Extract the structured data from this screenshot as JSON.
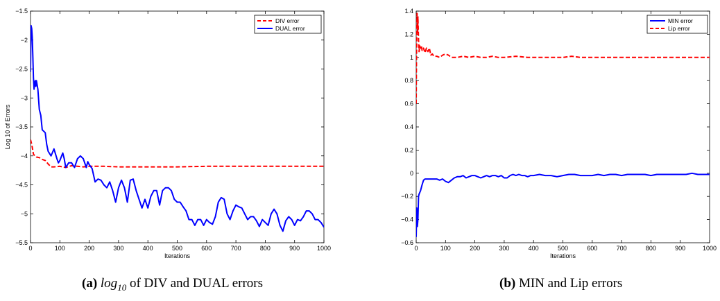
{
  "chart_data": [
    {
      "type": "line",
      "panel": "a",
      "caption": {
        "letter": "(a)",
        "math_base": "log",
        "math_sub": "10",
        "text": "of DIV and DUAL errors"
      },
      "xlabel": "Iterations",
      "ylabel": "Log 10 of Errors",
      "xlim": [
        0,
        1000
      ],
      "ylim": [
        -5.5,
        -1.5
      ],
      "xticks": [
        0,
        100,
        200,
        300,
        400,
        500,
        600,
        700,
        800,
        900,
        1000
      ],
      "yticks": [
        -5.5,
        -5,
        -4.5,
        -4,
        -3.5,
        -3,
        -2.5,
        -2,
        -1.5
      ],
      "ytick_labels": [
        "−5.5",
        "−5",
        "−4.5",
        "−4",
        "−3.5",
        "−3",
        "−2.5",
        "−2",
        "−1.5"
      ],
      "grid": false,
      "legend": "top-right",
      "series": [
        {
          "name": "DIV error",
          "color": "#ff0000",
          "dash": "dashed",
          "x": [
            0,
            3,
            6,
            10,
            15,
            20,
            30,
            40,
            50,
            60,
            70,
            80,
            100,
            120,
            140,
            160,
            180,
            200,
            250,
            300,
            350,
            400,
            450,
            500,
            600,
            700,
            800,
            900,
            1000
          ],
          "y": [
            -3.72,
            -3.78,
            -3.85,
            -3.97,
            -4.0,
            -4.02,
            -4.03,
            -4.06,
            -4.08,
            -4.14,
            -4.19,
            -4.19,
            -4.18,
            -4.2,
            -4.17,
            -4.18,
            -4.19,
            -4.18,
            -4.18,
            -4.19,
            -4.19,
            -4.19,
            -4.19,
            -4.19,
            -4.18,
            -4.18,
            -4.18,
            -4.18,
            -4.18
          ]
        },
        {
          "name": "DUAL error",
          "color": "#0000ff",
          "dash": "solid",
          "x": [
            0,
            2,
            4,
            6,
            8,
            10,
            12,
            14,
            16,
            18,
            20,
            25,
            30,
            35,
            40,
            50,
            55,
            60,
            70,
            80,
            90,
            95,
            100,
            110,
            115,
            120,
            130,
            140,
            150,
            160,
            170,
            180,
            190,
            195,
            200,
            210,
            220,
            230,
            240,
            250,
            260,
            270,
            280,
            290,
            300,
            310,
            320,
            330,
            340,
            350,
            360,
            370,
            380,
            390,
            400,
            410,
            420,
            430,
            440,
            450,
            460,
            470,
            480,
            490,
            500,
            510,
            520,
            530,
            540,
            550,
            560,
            570,
            580,
            590,
            600,
            610,
            620,
            630,
            640,
            650,
            660,
            670,
            680,
            690,
            700,
            710,
            720,
            730,
            740,
            750,
            760,
            770,
            780,
            790,
            800,
            810,
            820,
            830,
            840,
            850,
            860,
            870,
            880,
            890,
            900,
            910,
            920,
            930,
            940,
            950,
            960,
            970,
            980,
            990,
            1000
          ],
          "y": [
            -2.55,
            -1.75,
            -1.8,
            -1.95,
            -2.3,
            -2.65,
            -2.85,
            -2.75,
            -2.7,
            -2.8,
            -2.7,
            -2.85,
            -3.2,
            -3.3,
            -3.55,
            -3.6,
            -3.8,
            -3.92,
            -4.0,
            -3.88,
            -4.05,
            -4.12,
            -4.08,
            -3.95,
            -4.05,
            -4.2,
            -4.12,
            -4.12,
            -4.2,
            -4.05,
            -4.0,
            -4.05,
            -4.2,
            -4.1,
            -4.15,
            -4.22,
            -4.45,
            -4.4,
            -4.42,
            -4.5,
            -4.55,
            -4.45,
            -4.6,
            -4.8,
            -4.55,
            -4.42,
            -4.55,
            -4.8,
            -4.42,
            -4.4,
            -4.6,
            -4.75,
            -4.9,
            -4.75,
            -4.9,
            -4.7,
            -4.6,
            -4.6,
            -4.85,
            -4.6,
            -4.55,
            -4.55,
            -4.6,
            -4.75,
            -4.8,
            -4.8,
            -4.88,
            -4.95,
            -5.1,
            -5.1,
            -5.2,
            -5.1,
            -5.1,
            -5.2,
            -5.1,
            -5.15,
            -5.18,
            -5.05,
            -4.8,
            -4.72,
            -4.75,
            -5.0,
            -5.1,
            -4.95,
            -4.85,
            -4.88,
            -4.9,
            -5.0,
            -5.1,
            -5.05,
            -5.05,
            -5.12,
            -5.22,
            -5.1,
            -5.15,
            -5.2,
            -5.0,
            -4.92,
            -5.0,
            -5.2,
            -5.3,
            -5.12,
            -5.05,
            -5.1,
            -5.2,
            -5.1,
            -5.12,
            -5.05,
            -4.95,
            -4.95,
            -5.0,
            -5.1,
            -5.1,
            -5.15,
            -5.23
          ]
        }
      ]
    },
    {
      "type": "line",
      "panel": "b",
      "caption": {
        "letter": "(b)",
        "text": "MIN and Lip errors"
      },
      "xlabel": "Iterations",
      "ylabel": "",
      "xlim": [
        0,
        1000
      ],
      "ylim": [
        -0.6,
        1.4
      ],
      "xticks": [
        0,
        100,
        200,
        300,
        400,
        500,
        600,
        700,
        800,
        900,
        1000
      ],
      "yticks": [
        -0.6,
        -0.4,
        -0.2,
        0,
        0.2,
        0.4,
        0.6,
        0.8,
        1,
        1.2,
        1.4
      ],
      "ytick_labels": [
        "−0.6",
        "−0.4",
        "−0.2",
        "0",
        "0.2",
        "0.4",
        "0.6",
        "0.8",
        "1",
        "1.2",
        "1.4"
      ],
      "grid": false,
      "legend": "top-right",
      "series": [
        {
          "name": "MIN error",
          "color": "#0000ff",
          "dash": "solid",
          "x": [
            0,
            2,
            4,
            6,
            8,
            10,
            15,
            20,
            25,
            30,
            40,
            50,
            60,
            70,
            80,
            90,
            100,
            110,
            120,
            130,
            140,
            150,
            160,
            170,
            180,
            190,
            200,
            210,
            220,
            230,
            240,
            250,
            260,
            270,
            280,
            290,
            300,
            310,
            320,
            330,
            340,
            350,
            360,
            370,
            380,
            390,
            400,
            420,
            440,
            460,
            480,
            500,
            520,
            540,
            560,
            580,
            600,
            620,
            640,
            660,
            680,
            700,
            720,
            740,
            760,
            780,
            800,
            820,
            840,
            860,
            880,
            900,
            920,
            940,
            960,
            980,
            1000
          ],
          "y": [
            -0.55,
            -0.3,
            -0.46,
            -0.4,
            -0.2,
            -0.18,
            -0.15,
            -0.1,
            -0.06,
            -0.05,
            -0.05,
            -0.05,
            -0.05,
            -0.05,
            -0.06,
            -0.05,
            -0.07,
            -0.08,
            -0.06,
            -0.04,
            -0.03,
            -0.03,
            -0.02,
            -0.04,
            -0.03,
            -0.02,
            -0.02,
            -0.03,
            -0.04,
            -0.03,
            -0.02,
            -0.03,
            -0.02,
            -0.02,
            -0.03,
            -0.02,
            -0.04,
            -0.04,
            -0.02,
            -0.01,
            -0.02,
            -0.01,
            -0.02,
            -0.02,
            -0.03,
            -0.02,
            -0.02,
            -0.01,
            -0.02,
            -0.02,
            -0.03,
            -0.02,
            -0.01,
            -0.01,
            -0.02,
            -0.02,
            -0.02,
            -0.01,
            -0.02,
            -0.01,
            -0.01,
            -0.02,
            -0.01,
            -0.01,
            -0.01,
            -0.01,
            -0.02,
            -0.01,
            -0.01,
            -0.01,
            -0.01,
            -0.01,
            -0.01,
            0.0,
            -0.01,
            -0.01,
            -0.01
          ]
        },
        {
          "name": "Lip error",
          "color": "#ff0000",
          "dash": "dashed",
          "x": [
            0,
            1,
            2,
            3,
            4,
            5,
            6,
            8,
            10,
            12,
            15,
            18,
            20,
            25,
            30,
            35,
            40,
            45,
            50,
            55,
            60,
            70,
            80,
            90,
            100,
            110,
            120,
            140,
            160,
            180,
            200,
            220,
            240,
            260,
            280,
            300,
            340,
            380,
            420,
            460,
            500,
            530,
            560,
            600,
            700,
            800,
            900,
            1000
          ],
          "y": [
            0.6,
            0.95,
            1.2,
            1.38,
            1.3,
            1.2,
            1.35,
            1.15,
            1.05,
            1.1,
            1.08,
            1.1,
            1.06,
            1.08,
            1.04,
            1.08,
            1.05,
            1.08,
            1.02,
            1.03,
            1.01,
            1.01,
            1.0,
            1.02,
            1.03,
            1.02,
            1.0,
            1.0,
            1.01,
            1.0,
            1.01,
            1.0,
            1.0,
            1.01,
            1.0,
            1.0,
            1.01,
            1.0,
            1.0,
            1.0,
            1.0,
            1.01,
            1.0,
            1.0,
            1.0,
            1.0,
            1.0,
            1.0
          ]
        }
      ]
    }
  ]
}
